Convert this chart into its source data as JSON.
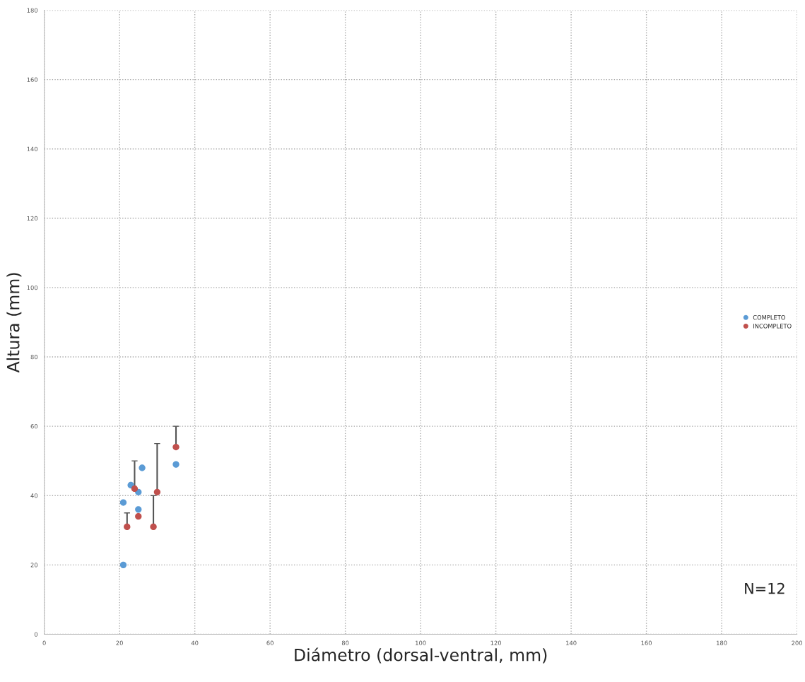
{
  "chart_data": {
    "type": "scatter",
    "xlabel": "Diámetro (dorsal-ventral, mm)",
    "ylabel": "Altura (mm)",
    "xlim": [
      0,
      200
    ],
    "xticks": [
      0,
      20,
      40,
      60,
      80,
      100,
      120,
      140,
      160,
      180,
      200
    ],
    "ylim": [
      0,
      180
    ],
    "yticks": [
      0,
      20,
      40,
      60,
      80,
      100,
      120,
      140,
      160,
      180
    ],
    "grid": true,
    "legend": "right",
    "marker": "circle",
    "annotations": [
      "N=12"
    ],
    "series": [
      {
        "name": "COMPLETO",
        "color": "#5b9bd5",
        "x": [
          21,
          26,
          25,
          23,
          25,
          35,
          21
        ],
        "values": [
          38,
          48,
          41,
          43,
          36,
          49,
          20
        ]
      },
      {
        "name": "INCOMPLETO",
        "color": "#c0504d",
        "x": [
          22,
          24,
          25,
          29,
          30,
          35
        ],
        "values": [
          31,
          42,
          34,
          31,
          41,
          54
        ],
        "errors": [
          [
            31,
            35
          ],
          [
            42,
            50
          ],
          null,
          [
            31,
            40
          ],
          [
            41,
            55
          ],
          [
            54,
            60
          ]
        ]
      }
    ]
  }
}
